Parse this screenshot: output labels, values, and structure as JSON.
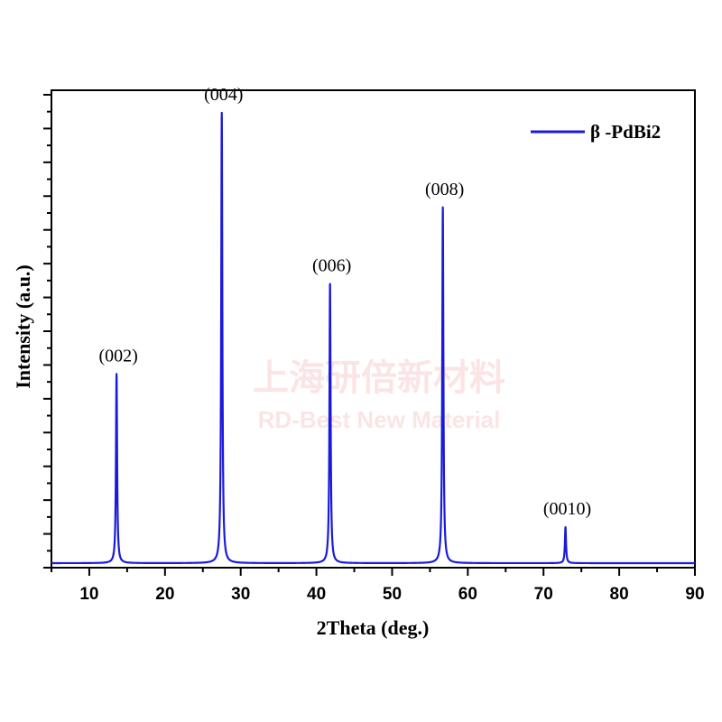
{
  "watermark": {
    "line1": "上海研倍新材料",
    "line2": "RD-Best New Material"
  },
  "chart_data": {
    "type": "line",
    "xlabel": "2Theta (deg.)",
    "ylabel": "Intensity (a.u.)",
    "xlim": [
      5,
      90
    ],
    "ylim": [
      0,
      1.06
    ],
    "x_ticks": [
      10,
      20,
      30,
      40,
      50,
      60,
      70,
      80,
      90
    ],
    "grid": false,
    "legend_position": "top-right",
    "series": [
      {
        "name": "β -PdBi2",
        "color": "#1a1adc",
        "baseline": 0.01,
        "peaks": [
          {
            "x": 13.6,
            "y": 0.42,
            "label": "(002)"
          },
          {
            "x": 27.5,
            "y": 1.0,
            "label": "(004)"
          },
          {
            "x": 41.8,
            "y": 0.62,
            "label": "(006)"
          },
          {
            "x": 56.7,
            "y": 0.79,
            "label": "(008)"
          },
          {
            "x": 72.9,
            "y": 0.08,
            "label": "(0010)"
          }
        ]
      }
    ]
  }
}
